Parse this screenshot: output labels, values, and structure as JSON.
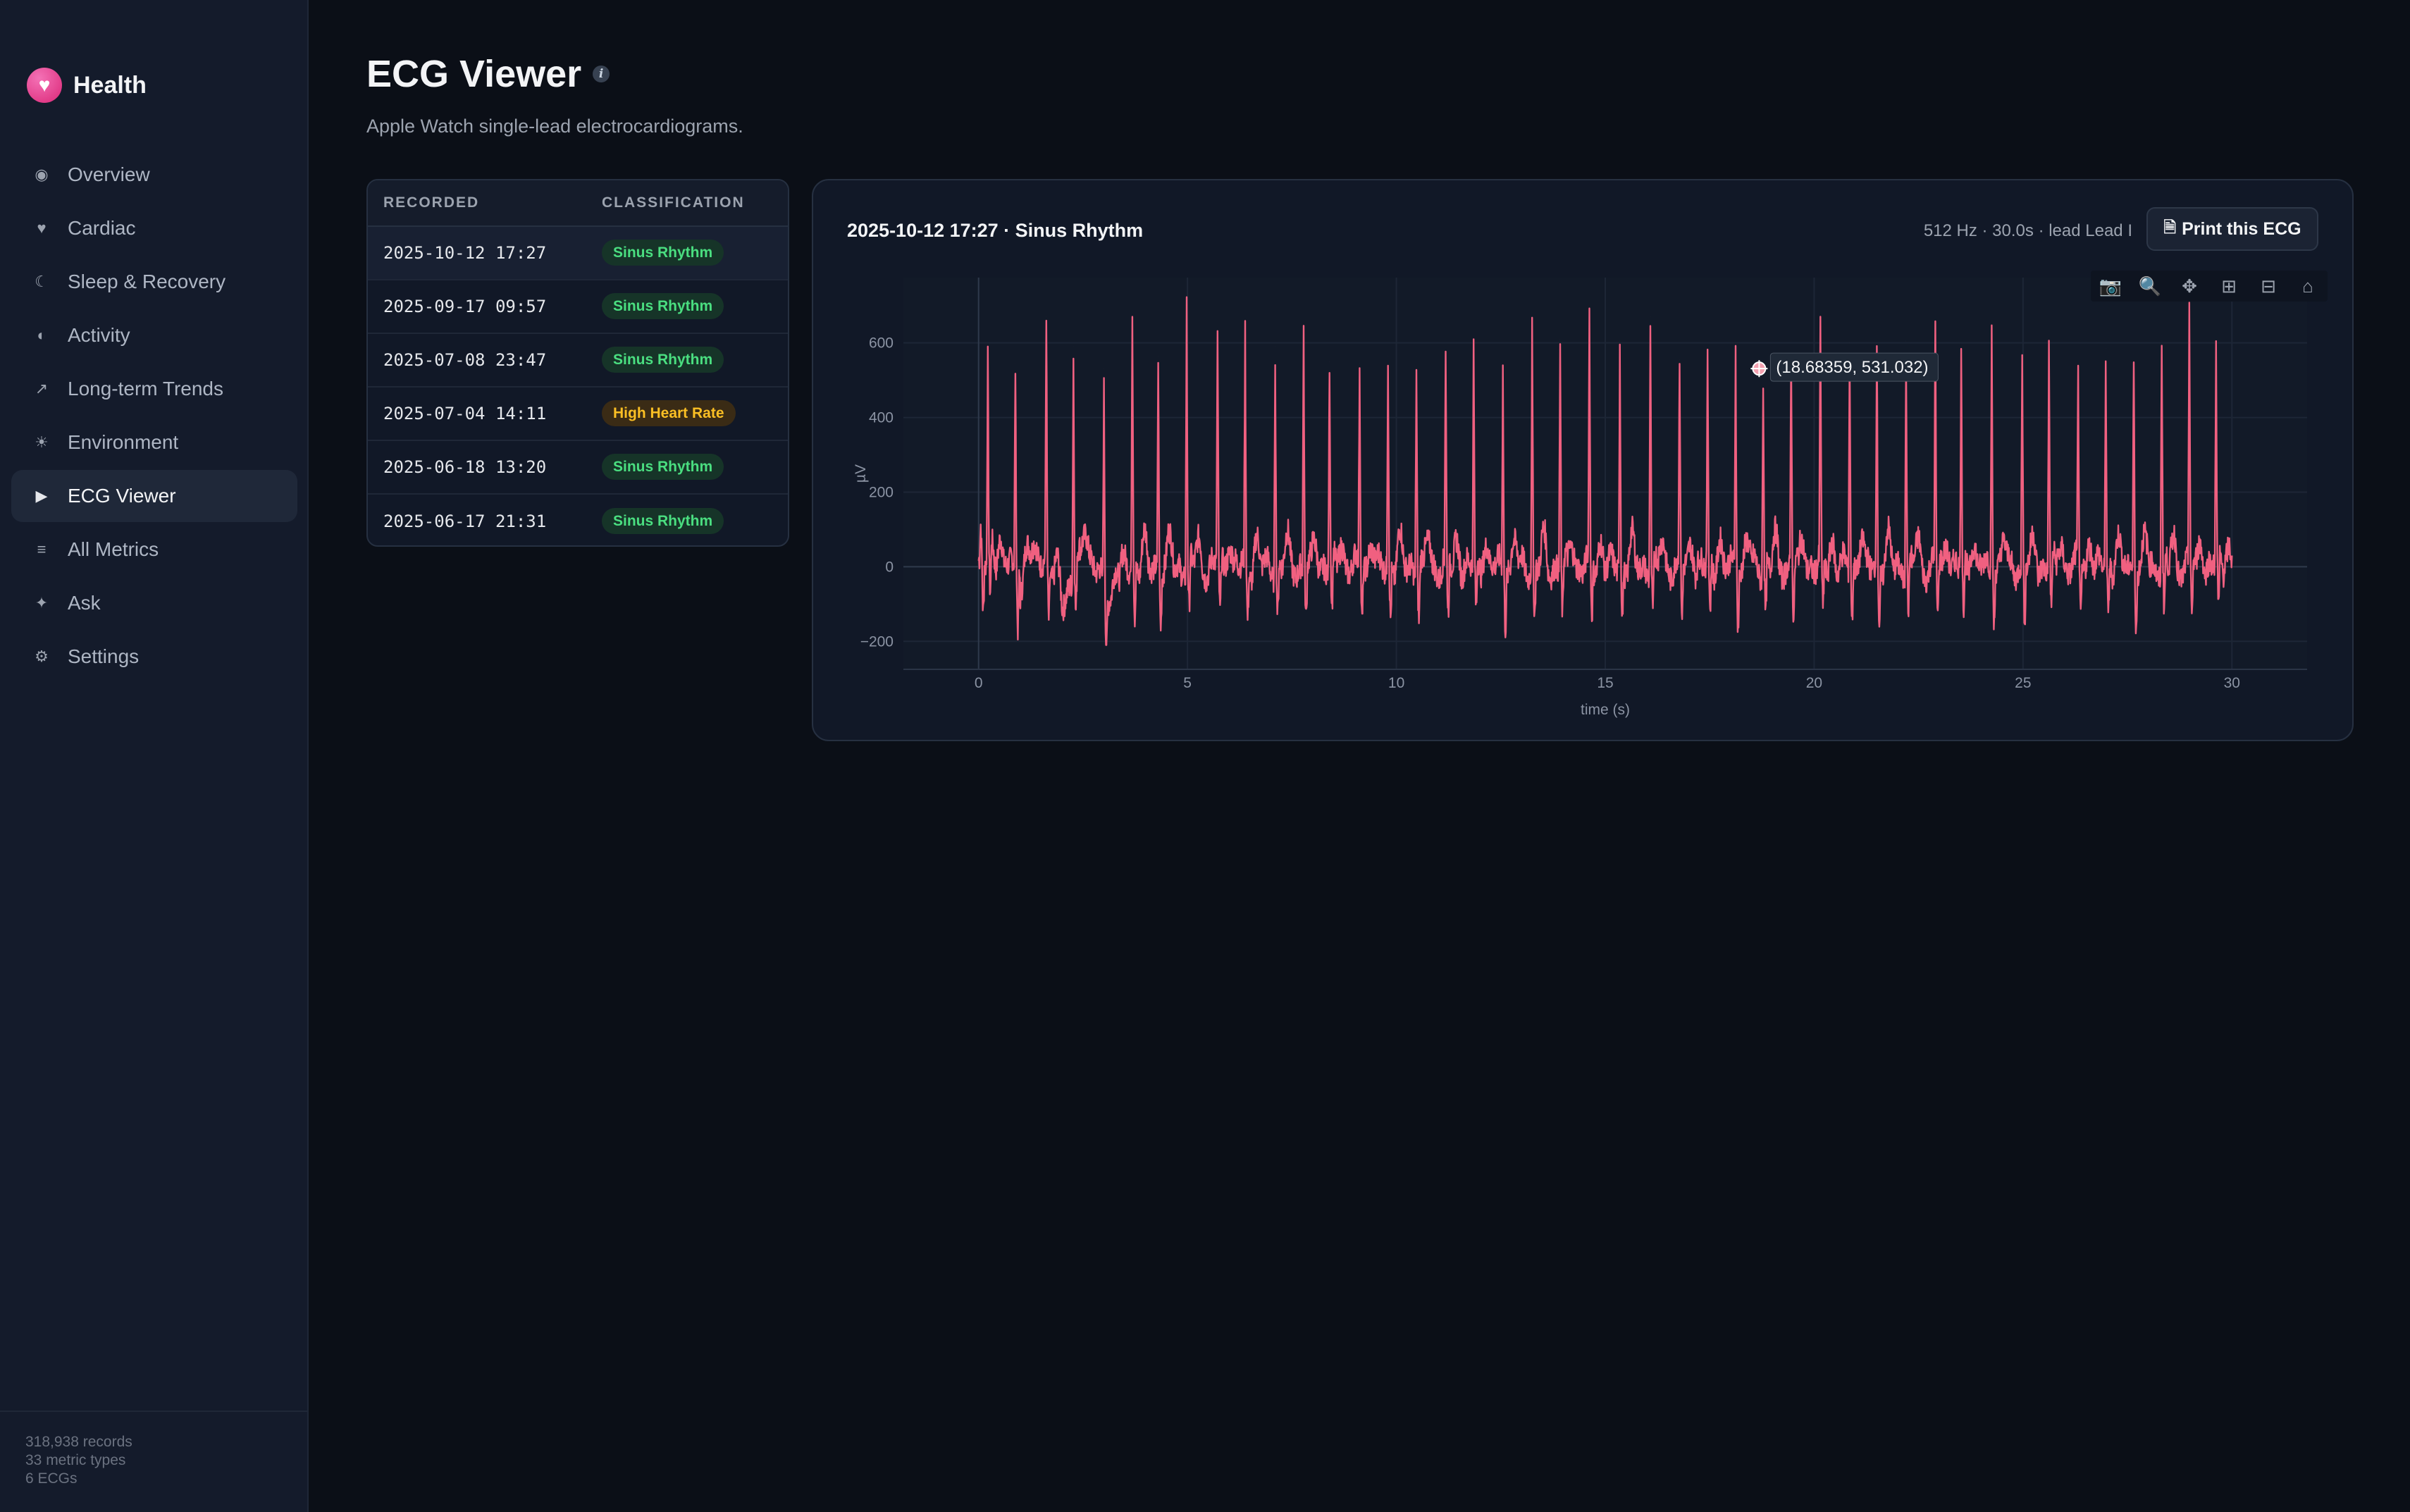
{
  "brand": {
    "name": "Health",
    "icon": "heart-icon"
  },
  "nav": {
    "items": [
      {
        "label": "Overview",
        "icon": "target-icon",
        "glyph": "◉"
      },
      {
        "label": "Cardiac",
        "icon": "heart-icon",
        "glyph": "♥"
      },
      {
        "label": "Sleep & Recovery",
        "icon": "moon-icon",
        "glyph": "☾"
      },
      {
        "label": "Activity",
        "icon": "half-circle-icon",
        "glyph": "◐"
      },
      {
        "label": "Long-term Trends",
        "icon": "trend-arrow-icon",
        "glyph": "↗"
      },
      {
        "label": "Environment",
        "icon": "sun-icon",
        "glyph": "☀"
      },
      {
        "label": "ECG Viewer",
        "icon": "play-icon",
        "glyph": "▶",
        "active": true
      },
      {
        "label": "All Metrics",
        "icon": "list-icon",
        "glyph": "≡"
      },
      {
        "label": "Ask",
        "icon": "sparkle-icon",
        "glyph": "✦"
      },
      {
        "label": "Settings",
        "icon": "gear-icon",
        "glyph": "⚙"
      }
    ]
  },
  "footer": {
    "records": "318,938 records",
    "metric_types": "33 metric types",
    "ecgs": "6 ECGs"
  },
  "page": {
    "title": "ECG Viewer",
    "subtitle": "Apple Watch single-lead electrocardiograms."
  },
  "table": {
    "headers": {
      "recorded": "RECORDED",
      "classification": "CLASSIFICATION"
    },
    "rows": [
      {
        "recorded": "2025-10-12 17:27",
        "classification": "Sinus Rhythm",
        "status": "green",
        "selected": true
      },
      {
        "recorded": "2025-09-17 09:57",
        "classification": "Sinus Rhythm",
        "status": "green"
      },
      {
        "recorded": "2025-07-08 23:47",
        "classification": "Sinus Rhythm",
        "status": "green"
      },
      {
        "recorded": "2025-07-04 14:11",
        "classification": "High Heart Rate",
        "status": "amber"
      },
      {
        "recorded": "2025-06-18 13:20",
        "classification": "Sinus Rhythm",
        "status": "green"
      },
      {
        "recorded": "2025-06-17 21:31",
        "classification": "Sinus Rhythm",
        "status": "green"
      }
    ]
  },
  "chart_panel": {
    "title": "2025-10-12 17:27 · Sinus Rhythm",
    "meta": "512 Hz · 30.0s · lead Lead I",
    "print_label": "Print this ECG",
    "modebar": [
      "camera-icon",
      "zoom-icon",
      "pan-icon",
      "zoom-in-icon",
      "zoom-out-icon",
      "home-icon"
    ],
    "hover_label": "(18.68359, 531.032)"
  },
  "chart_data": {
    "type": "line",
    "xlabel": "time (s)",
    "ylabel": "µV",
    "xlim": [
      -1.8,
      31.8
    ],
    "ylim": [
      -275,
      775
    ],
    "xticks": [
      0,
      5,
      10,
      15,
      20,
      25,
      30
    ],
    "yticks": [
      -200,
      0,
      200,
      400,
      600
    ],
    "color": "#f06080",
    "sample_rate_hz": 512,
    "duration_s": 30.0,
    "hover_point": {
      "x": 18.68359,
      "y": 531.032
    },
    "r_peaks": [
      {
        "t": 0.05,
        "a": 90
      },
      {
        "t": 0.22,
        "a": 545
      },
      {
        "t": 0.88,
        "a": 545
      },
      {
        "t": 1.62,
        "a": 670
      },
      {
        "t": 2.27,
        "a": 590
      },
      {
        "t": 3.0,
        "a": 530
      },
      {
        "t": 3.68,
        "a": 705
      },
      {
        "t": 4.3,
        "a": 565
      },
      {
        "t": 4.98,
        "a": 710
      },
      {
        "t": 5.72,
        "a": 625
      },
      {
        "t": 6.38,
        "a": 615
      },
      {
        "t": 7.1,
        "a": 590
      },
      {
        "t": 7.78,
        "a": 650
      },
      {
        "t": 8.4,
        "a": 550
      },
      {
        "t": 9.12,
        "a": 545
      },
      {
        "t": 9.8,
        "a": 565
      },
      {
        "t": 10.48,
        "a": 565
      },
      {
        "t": 11.18,
        "a": 565
      },
      {
        "t": 11.85,
        "a": 590
      },
      {
        "t": 12.55,
        "a": 540
      },
      {
        "t": 13.25,
        "a": 640
      },
      {
        "t": 13.92,
        "a": 610
      },
      {
        "t": 14.62,
        "a": 650
      },
      {
        "t": 15.35,
        "a": 605
      },
      {
        "t": 16.08,
        "a": 670
      },
      {
        "t": 16.78,
        "a": 555
      },
      {
        "t": 17.45,
        "a": 580
      },
      {
        "t": 18.12,
        "a": 600
      },
      {
        "t": 18.78,
        "a": 520
      },
      {
        "t": 19.45,
        "a": 605
      },
      {
        "t": 20.15,
        "a": 620
      },
      {
        "t": 20.85,
        "a": 600
      },
      {
        "t": 21.5,
        "a": 620
      },
      {
        "t": 22.2,
        "a": 605
      },
      {
        "t": 22.9,
        "a": 635
      },
      {
        "t": 23.52,
        "a": 555
      },
      {
        "t": 24.25,
        "a": 650
      },
      {
        "t": 24.98,
        "a": 570
      },
      {
        "t": 25.62,
        "a": 590
      },
      {
        "t": 26.32,
        "a": 500
      },
      {
        "t": 26.98,
        "a": 585
      },
      {
        "t": 27.65,
        "a": 570
      },
      {
        "t": 28.32,
        "a": 620
      },
      {
        "t": 28.98,
        "a": 700
      },
      {
        "t": 29.62,
        "a": 590
      }
    ]
  }
}
